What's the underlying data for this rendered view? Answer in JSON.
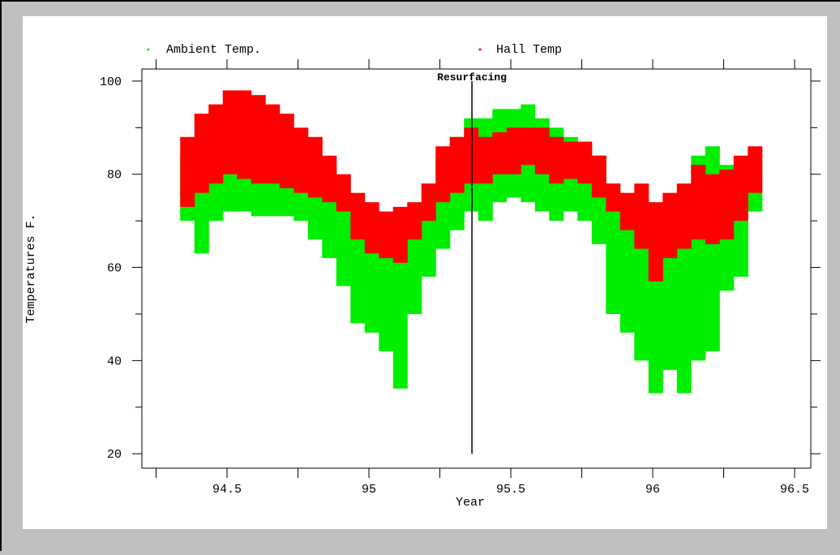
{
  "chart_data": {
    "type": "range",
    "x_label": "Year",
    "y_label": "Temperatures F.",
    "xlim": [
      94.2,
      96.557
    ],
    "ylim": [
      16.9,
      102.6
    ],
    "xticks": [
      94.5,
      95,
      95.5,
      96,
      96.5
    ],
    "xminorticks": [
      94.25,
      94.75,
      95.25,
      95.75,
      96.25
    ],
    "yticks": [
      20,
      40,
      60,
      80,
      100
    ],
    "yminorticks": [
      30,
      50,
      70,
      90
    ],
    "annotation": {
      "text": "Resurfacing",
      "x": 95.363
    },
    "x": [
      94.36,
      94.41,
      94.46,
      94.51,
      94.56,
      94.61,
      94.66,
      94.71,
      94.76,
      94.81,
      94.86,
      94.91,
      94.96,
      95.01,
      95.06,
      95.11,
      95.16,
      95.21,
      95.26,
      95.31,
      95.36,
      95.41,
      95.46,
      95.51,
      95.56,
      95.61,
      95.66,
      95.71,
      95.76,
      95.81,
      95.86,
      95.91,
      95.96,
      96.01,
      96.06,
      96.11,
      96.16,
      96.21,
      96.26,
      96.31,
      96.36
    ],
    "series": [
      {
        "name": "Ambient Temp.",
        "color": "#00ee00",
        "high": [
          84,
          84,
          86,
          86,
          88,
          86,
          86,
          84,
          82,
          80,
          78,
          75,
          68,
          70,
          68,
          70,
          72,
          78,
          84,
          88,
          92,
          92,
          94,
          94,
          95,
          92,
          90,
          88,
          86,
          84,
          78,
          74,
          72,
          70,
          70,
          74,
          84,
          86,
          82,
          80,
          80
        ],
        "low": [
          70,
          63,
          70,
          72,
          72,
          71,
          71,
          71,
          70,
          66,
          62,
          56,
          48,
          46,
          42,
          34,
          50,
          58,
          64,
          68,
          72,
          70,
          74,
          75,
          74,
          72,
          70,
          72,
          70,
          65,
          50,
          46,
          40,
          33,
          38,
          33,
          40,
          42,
          55,
          58,
          72
        ]
      },
      {
        "name": "Hall Temp",
        "color": "#ff0000",
        "high": [
          88,
          93,
          95,
          98,
          98,
          97,
          95,
          93,
          90,
          88,
          84,
          80,
          76,
          74,
          72,
          73,
          74,
          78,
          86,
          88,
          90,
          88,
          89,
          90,
          90,
          90,
          88,
          87,
          87,
          84,
          78,
          76,
          78,
          74,
          76,
          78,
          82,
          80,
          81,
          84,
          86
        ],
        "low": [
          73,
          76,
          78,
          80,
          79,
          78,
          78,
          77,
          76,
          75,
          74,
          72,
          66,
          63,
          62,
          61,
          66,
          70,
          74,
          76,
          78,
          78,
          80,
          80,
          82,
          80,
          78,
          79,
          78,
          75,
          72,
          68,
          64,
          57,
          62,
          64,
          66,
          65,
          66,
          70,
          76
        ]
      }
    ]
  }
}
